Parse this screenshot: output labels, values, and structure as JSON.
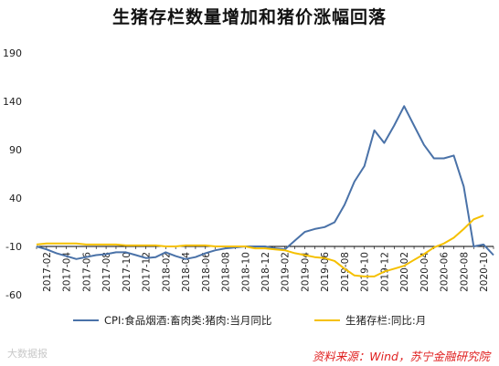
{
  "title": "生猪存栏数量增加和猪价涨幅回落",
  "source_text": "资料来源：Wind，苏宁金融研究院",
  "watermark_text": "大数据报",
  "chart_data": {
    "type": "line",
    "title": "生猪存栏数量增加和猪价涨幅回落",
    "ylim": [
      -60,
      190
    ],
    "yticks": [
      190,
      140,
      90,
      40,
      -10,
      -60
    ],
    "x_tick_labels": [
      "2017-02",
      "2017-04",
      "2017-06",
      "2017-08",
      "2017-10",
      "2017-12",
      "2018-02",
      "2018-04",
      "2018-06",
      "2018-08",
      "2018-10",
      "2018-12",
      "2019-02",
      "2019-04",
      "2019-06",
      "2019-08",
      "2019-10",
      "2019-12",
      "2020-02",
      "2020-04",
      "2020-06",
      "2020-08",
      "2020-10"
    ],
    "x": [
      "2017-01",
      "2017-02",
      "2017-03",
      "2017-04",
      "2017-05",
      "2017-06",
      "2017-07",
      "2017-08",
      "2017-09",
      "2017-10",
      "2017-11",
      "2017-12",
      "2018-01",
      "2018-02",
      "2018-03",
      "2018-04",
      "2018-05",
      "2018-06",
      "2018-07",
      "2018-08",
      "2018-09",
      "2018-10",
      "2018-11",
      "2018-12",
      "2019-01",
      "2019-02",
      "2019-03",
      "2019-04",
      "2019-05",
      "2019-06",
      "2019-07",
      "2019-08",
      "2019-09",
      "2019-10",
      "2019-11",
      "2019-12",
      "2020-01",
      "2020-02",
      "2020-03",
      "2020-04",
      "2020-05",
      "2020-06",
      "2020-07",
      "2020-08",
      "2020-09",
      "2020-10",
      "2020-11"
    ],
    "series": [
      {
        "name": "CPI:食品烟酒:畜肉类:猪肉:当月同比",
        "color": "#4a72a8",
        "values": [
          -10,
          -13,
          -17,
          -20,
          -23,
          -21,
          -19,
          -18,
          -16,
          -16,
          -19,
          -22,
          -21,
          -16,
          -20,
          -23,
          -21,
          -17,
          -14,
          -12,
          -11,
          -10,
          -10,
          -10,
          -12,
          -13,
          -4,
          5,
          8,
          10,
          15,
          33,
          57,
          73,
          110,
          97,
          115,
          135,
          115,
          95,
          81,
          81,
          84,
          52,
          -10,
          -8,
          -19
        ]
      },
      {
        "name": "生猪存栏:同比:月",
        "color": "#f5c000",
        "values": [
          -8,
          -7,
          -7,
          -7,
          -7,
          -8,
          -8,
          -8,
          -8,
          -9,
          -9,
          -9,
          -9,
          -10,
          -10,
          -9,
          -9,
          -9,
          -10,
          -10,
          -10,
          -10,
          -12,
          -12,
          -13,
          -14,
          -17,
          -19,
          -21,
          -22,
          -25,
          -33,
          -40,
          -41,
          -41,
          -36,
          -33,
          -30,
          -24,
          -18,
          -11,
          -7,
          -1,
          8,
          18,
          22,
          null
        ]
      }
    ],
    "legend_position": "bottom",
    "grid": false
  }
}
